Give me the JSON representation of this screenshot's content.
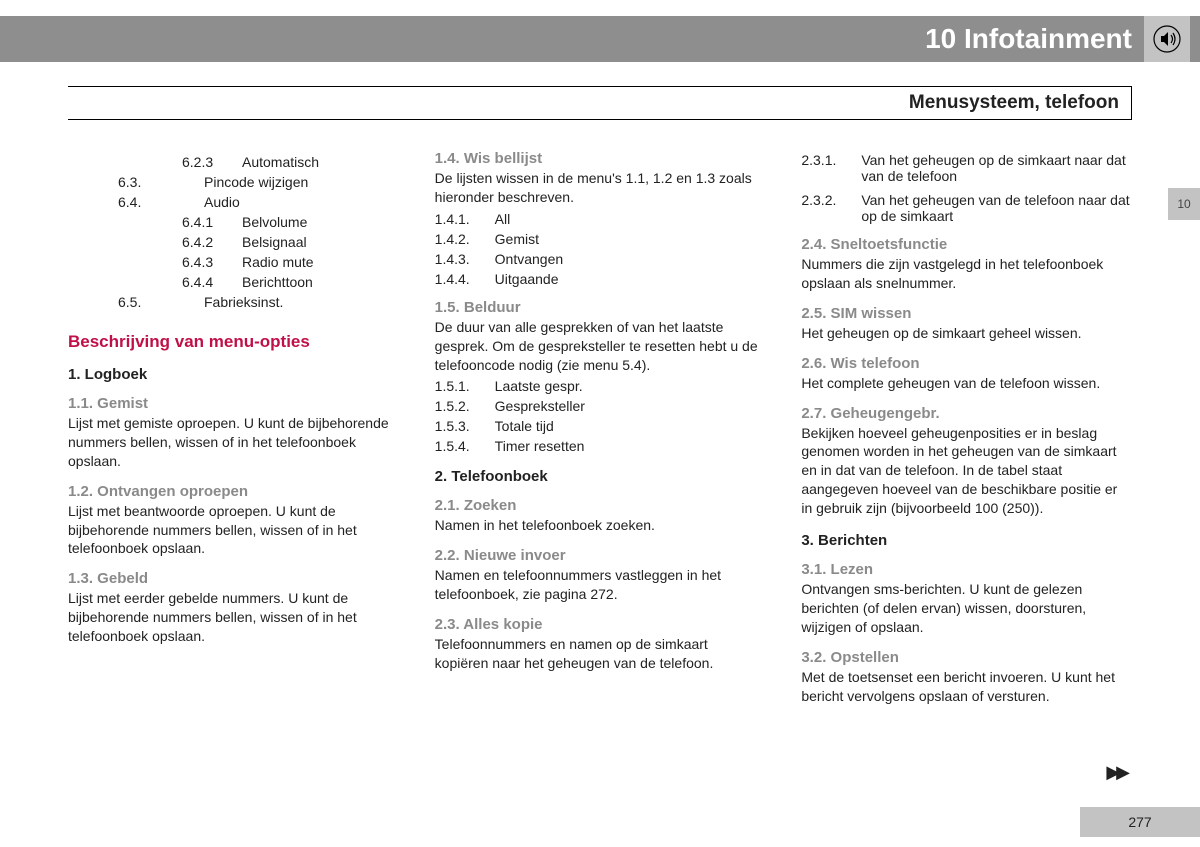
{
  "chapter": {
    "number": "10",
    "title": "Infotainment",
    "tab_label": "10"
  },
  "section_title": "Menusysteem, telefoon",
  "page_number": "277",
  "continuation": "▶▶",
  "col1": {
    "menu1": [
      {
        "num": "6.2.3",
        "label": "Automatisch",
        "lvl": 2
      },
      {
        "num": "6.3.",
        "label": "Pincode wijzigen",
        "lvl": 1
      },
      {
        "num": "6.4.",
        "label": "Audio",
        "lvl": 1
      },
      {
        "num": "6.4.1",
        "label": "Belvolume",
        "lvl": 2
      },
      {
        "num": "6.4.2",
        "label": "Belsignaal",
        "lvl": 2
      },
      {
        "num": "6.4.3",
        "label": "Radio mute",
        "lvl": 2
      },
      {
        "num": "6.4.4",
        "label": "Berichttoon",
        "lvl": 2
      },
      {
        "num": "6.5.",
        "label": "Fabrieksinst.",
        "lvl": 1
      }
    ],
    "red_heading": "Beschrijving van menu-opties",
    "s1_title": "1. Logboek",
    "s11_h": "1.1. Gemist",
    "s11_t": "Lijst met gemiste oproepen. U kunt de bijbehorende nummers bellen, wissen of in het telefoonboek opslaan.",
    "s12_h": "1.2. Ontvangen oproepen",
    "s12_t": "Lijst met beantwoorde oproepen. U kunt de bijbehorende nummers bellen, wissen of in het telefoonboek opslaan.",
    "s13_h": "1.3. Gebeld",
    "s13_t": "Lijst met eerder gebelde nummers. U kunt de bijbehorende nummers bellen, wissen of in het telefoonboek opslaan."
  },
  "col2": {
    "s14_h": "1.4. Wis bellijst",
    "s14_t": "De lijsten wissen in de menu's 1.1, 1.2 en 1.3 zoals hieronder beschreven.",
    "menu14": [
      {
        "num": "1.4.1.",
        "label": "All"
      },
      {
        "num": "1.4.2.",
        "label": "Gemist"
      },
      {
        "num": "1.4.3.",
        "label": "Ontvangen"
      },
      {
        "num": "1.4.4.",
        "label": "Uitgaande"
      }
    ],
    "s15_h": "1.5. Belduur",
    "s15_t": "De duur van alle gesprekken of van het laatste gesprek. Om de gespreksteller te resetten hebt u de telefooncode nodig (zie menu 5.4).",
    "menu15": [
      {
        "num": "1.5.1.",
        "label": "Laatste gespr."
      },
      {
        "num": "1.5.2.",
        "label": "Gespreksteller"
      },
      {
        "num": "1.5.3.",
        "label": "Totale tijd"
      },
      {
        "num": "1.5.4.",
        "label": "Timer resetten"
      }
    ],
    "s2_title": "2. Telefoonboek",
    "s21_h": "2.1. Zoeken",
    "s21_t": "Namen in het telefoonboek zoeken.",
    "s22_h": "2.2. Nieuwe invoer",
    "s22_t": "Namen en telefoonnummers vastleggen in het telefoonboek, zie pagina 272.",
    "s23_h": "2.3. Alles kopie",
    "s23_t": "Telefoonnummers en namen op de simkaart kopiëren naar het geheugen van de telefoon."
  },
  "col3": {
    "menu23": [
      {
        "num": "2.3.1.",
        "label": "Van het geheugen op de simkaart naar dat van de telefoon"
      },
      {
        "num": "2.3.2.",
        "label": "Van het geheugen van de telefoon naar dat op de simkaart"
      }
    ],
    "s24_h": "2.4. Sneltoetsfunctie",
    "s24_t": "Nummers die zijn vastgelegd in het telefoonboek opslaan als snelnummer.",
    "s25_h": "2.5. SIM wissen",
    "s25_t": "Het geheugen op de simkaart geheel wissen.",
    "s26_h": "2.6. Wis telefoon",
    "s26_t": "Het complete geheugen van de telefoon wissen.",
    "s27_h": "2.7. Geheugengebr.",
    "s27_t": "Bekijken hoeveel geheugenposities er in beslag genomen worden in het geheugen van de simkaart en in dat van de telefoon. In de tabel staat aangegeven hoeveel van de beschikbare positie er in gebruik zijn (bijvoorbeeld 100 (250)).",
    "s3_title": "3. Berichten",
    "s31_h": "3.1. Lezen",
    "s31_t": "Ontvangen sms-berichten. U kunt de gelezen berichten (of delen ervan) wissen, doorsturen, wijzigen of opslaan.",
    "s32_h": "3.2. Opstellen",
    "s32_t": "Met de toetsenset een bericht invoeren. U kunt het bericht vervolgens opslaan of versturen."
  }
}
